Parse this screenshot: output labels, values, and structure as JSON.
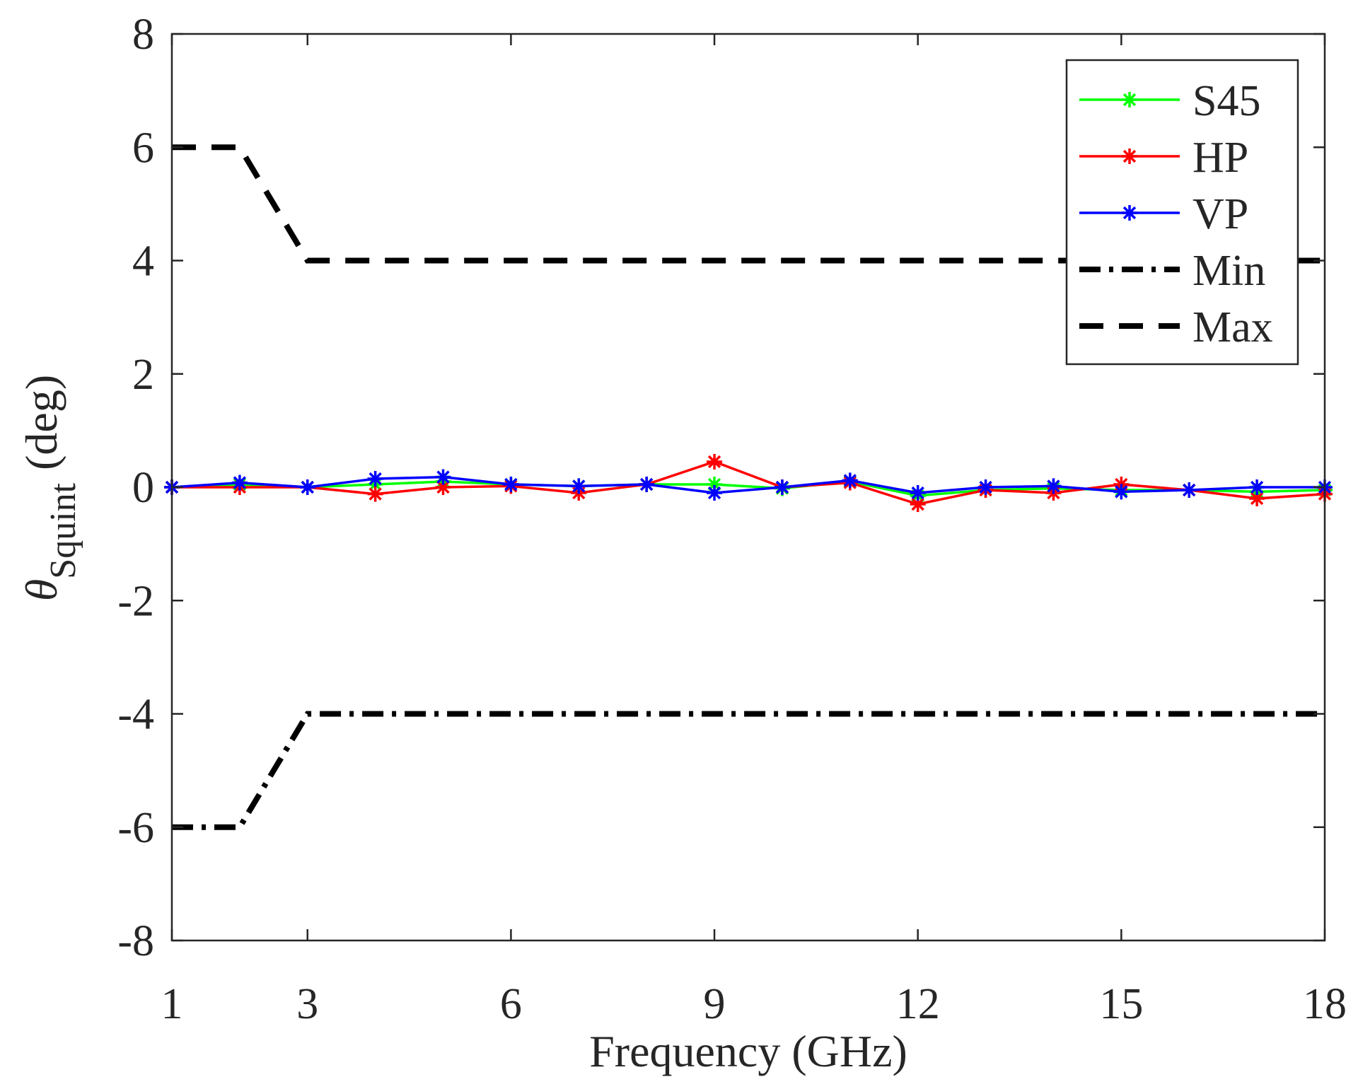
{
  "chart_data": {
    "type": "line",
    "title": "",
    "xlabel": "Frequency (GHz)",
    "ylabel": {
      "symbol": "θ",
      "subscript": "Squint",
      "unit": "(deg)"
    },
    "xlim": [
      1,
      18
    ],
    "ylim": [
      -8,
      8
    ],
    "xticks": [
      1,
      3,
      6,
      9,
      12,
      15,
      18
    ],
    "yticks": [
      -8,
      -6,
      -4,
      -2,
      0,
      2,
      4,
      6,
      8
    ],
    "xtick_labels": [
      "1",
      "3",
      "6",
      "9",
      "12",
      "15",
      "18"
    ],
    "ytick_labels": [
      "-8",
      "-6",
      "-4",
      "-2",
      "0",
      "2",
      "4",
      "6",
      "8"
    ],
    "grid": false,
    "legend_position": "top-right",
    "x": [
      1,
      2,
      3,
      4,
      5,
      6,
      7,
      8,
      9,
      10,
      11,
      12,
      13,
      14,
      15,
      16,
      17,
      18
    ],
    "series": [
      {
        "name": "S45",
        "color": "#00ff00",
        "style": "solid-marker",
        "values": [
          0,
          0.05,
          0,
          0.05,
          0.1,
          0.05,
          0.02,
          0.05,
          0.05,
          -0.02,
          0.1,
          -0.15,
          -0.05,
          -0.02,
          -0.05,
          -0.05,
          -0.08,
          -0.05
        ]
      },
      {
        "name": "HP",
        "color": "#ff0000",
        "style": "solid-marker",
        "values": [
          0,
          0,
          0,
          -0.12,
          0,
          0.02,
          -0.1,
          0.05,
          0.45,
          0,
          0.08,
          -0.3,
          -0.05,
          -0.1,
          0.05,
          -0.05,
          -0.2,
          -0.12
        ]
      },
      {
        "name": "VP",
        "color": "#0000ff",
        "style": "solid-marker",
        "values": [
          0,
          0.08,
          0,
          0.15,
          0.18,
          0.05,
          0.02,
          0.05,
          -0.1,
          0,
          0.12,
          -0.1,
          0,
          0.02,
          -0.08,
          -0.05,
          0,
          0
        ]
      },
      {
        "name": "Min",
        "color": "#000000",
        "style": "dash-dot",
        "x": [
          1,
          2,
          3,
          18
        ],
        "values": [
          -6,
          -6,
          -4,
          -4
        ]
      },
      {
        "name": "Max",
        "color": "#000000",
        "style": "dashed",
        "x": [
          1,
          2,
          3,
          18
        ],
        "values": [
          6,
          6,
          4,
          4
        ]
      }
    ]
  }
}
